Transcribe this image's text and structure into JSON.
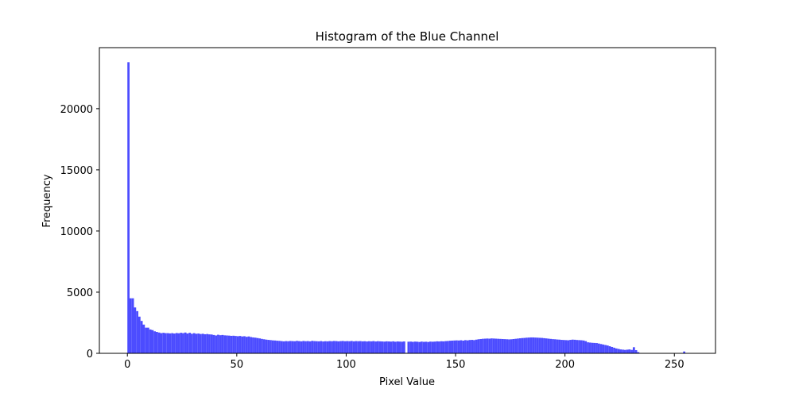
{
  "chart_data": {
    "type": "histogram",
    "title": "Histogram of the Blue Channel",
    "xlabel": "Pixel Value",
    "ylabel": "Frequency",
    "color": "#4c4cff",
    "bins": [
      0,
      1,
      2,
      3,
      4,
      5,
      6,
      7,
      8,
      9,
      10,
      11,
      12,
      13,
      14,
      15,
      16,
      17,
      18,
      19,
      20,
      21,
      22,
      23,
      24,
      25,
      26,
      27,
      28,
      29,
      30,
      31,
      32,
      33,
      34,
      35,
      36,
      37,
      38,
      39,
      40,
      41,
      42,
      43,
      44,
      45,
      46,
      47,
      48,
      49,
      50,
      51,
      52,
      53,
      54,
      55,
      56,
      57,
      58,
      59,
      60,
      61,
      62,
      63,
      64,
      65,
      66,
      67,
      68,
      69,
      70,
      71,
      72,
      73,
      74,
      75,
      76,
      77,
      78,
      79,
      80,
      81,
      82,
      83,
      84,
      85,
      86,
      87,
      88,
      89,
      90,
      91,
      92,
      93,
      94,
      95,
      96,
      97,
      98,
      99,
      100,
      101,
      102,
      103,
      104,
      105,
      106,
      107,
      108,
      109,
      110,
      111,
      112,
      113,
      114,
      115,
      116,
      117,
      118,
      119,
      120,
      121,
      122,
      123,
      124,
      125,
      126,
      127,
      128,
      129,
      130,
      131,
      132,
      133,
      134,
      135,
      136,
      137,
      138,
      139,
      140,
      141,
      142,
      143,
      144,
      145,
      146,
      147,
      148,
      149,
      150,
      151,
      152,
      153,
      154,
      155,
      156,
      157,
      158,
      159,
      160,
      161,
      162,
      163,
      164,
      165,
      166,
      167,
      168,
      169,
      170,
      171,
      172,
      173,
      174,
      175,
      176,
      177,
      178,
      179,
      180,
      181,
      182,
      183,
      184,
      185,
      186,
      187,
      188,
      189,
      190,
      191,
      192,
      193,
      194,
      195,
      196,
      197,
      198,
      199,
      200,
      201,
      202,
      203,
      204,
      205,
      206,
      207,
      208,
      209,
      210,
      211,
      212,
      213,
      214,
      215,
      216,
      217,
      218,
      219,
      220,
      221,
      222,
      223,
      224,
      225,
      226,
      227,
      228,
      229,
      230,
      231,
      232,
      233,
      234,
      235,
      236,
      237,
      238,
      239,
      240,
      241,
      242,
      243,
      244,
      245,
      246,
      247,
      248,
      249,
      250,
      251,
      252,
      253,
      254,
      255,
      256
    ],
    "values": [
      23800,
      4500,
      4500,
      3750,
      3450,
      3000,
      2650,
      2350,
      2100,
      2100,
      1950,
      1900,
      1800,
      1750,
      1700,
      1650,
      1680,
      1650,
      1650,
      1630,
      1650,
      1620,
      1660,
      1640,
      1680,
      1650,
      1700,
      1620,
      1680,
      1600,
      1650,
      1600,
      1620,
      1580,
      1600,
      1560,
      1580,
      1550,
      1540,
      1500,
      1460,
      1520,
      1480,
      1500,
      1470,
      1460,
      1450,
      1430,
      1440,
      1420,
      1400,
      1420,
      1380,
      1400,
      1350,
      1380,
      1330,
      1300,
      1280,
      1250,
      1220,
      1180,
      1150,
      1120,
      1100,
      1080,
      1060,
      1050,
      1030,
      1020,
      1000,
      980,
      1000,
      990,
      1010,
      1000,
      990,
      1020,
      1000,
      980,
      1010,
      990,
      1000,
      980,
      1020,
      1000,
      990,
      980,
      1000,
      970,
      990,
      980,
      1000,
      990,
      1010,
      1000,
      980,
      1000,
      1010,
      990,
      1000,
      990,
      1010,
      980,
      1000,
      990,
      1000,
      980,
      990,
      970,
      990,
      980,
      1000,
      970,
      990,
      980,
      970,
      960,
      980,
      970,
      960,
      980,
      950,
      970,
      960,
      950,
      970,
      40,
      950,
      960,
      940,
      960,
      950,
      930,
      960,
      940,
      950,
      930,
      960,
      950,
      960,
      980,
      970,
      990,
      980,
      1000,
      1010,
      1030,
      1040,
      1050,
      1060,
      1050,
      1070,
      1040,
      1080,
      1060,
      1090,
      1100,
      1080,
      1120,
      1150,
      1170,
      1190,
      1200,
      1210,
      1200,
      1220,
      1210,
      1200,
      1190,
      1180,
      1170,
      1160,
      1150,
      1140,
      1150,
      1170,
      1190,
      1210,
      1230,
      1250,
      1260,
      1280,
      1290,
      1300,
      1300,
      1290,
      1280,
      1270,
      1260,
      1240,
      1220,
      1200,
      1180,
      1160,
      1150,
      1130,
      1120,
      1100,
      1090,
      1080,
      1070,
      1100,
      1120,
      1110,
      1090,
      1080,
      1070,
      1050,
      1000,
      900,
      880,
      860,
      850,
      840,
      800,
      760,
      720,
      680,
      640,
      580,
      520,
      460,
      400,
      360,
      320,
      300,
      280,
      300,
      320,
      280,
      500,
      260,
      100,
      30,
      10,
      0,
      0,
      0,
      0,
      0,
      0,
      0,
      0,
      0,
      0,
      0,
      0,
      0,
      0,
      0,
      0,
      0,
      0,
      150,
      0
    ],
    "xlim": [
      -12.8,
      268.8
    ],
    "ylim": [
      0,
      24990
    ],
    "xticks": [
      0,
      50,
      100,
      150,
      200,
      250
    ],
    "yticks": [
      0,
      5000,
      10000,
      15000,
      20000
    ]
  }
}
